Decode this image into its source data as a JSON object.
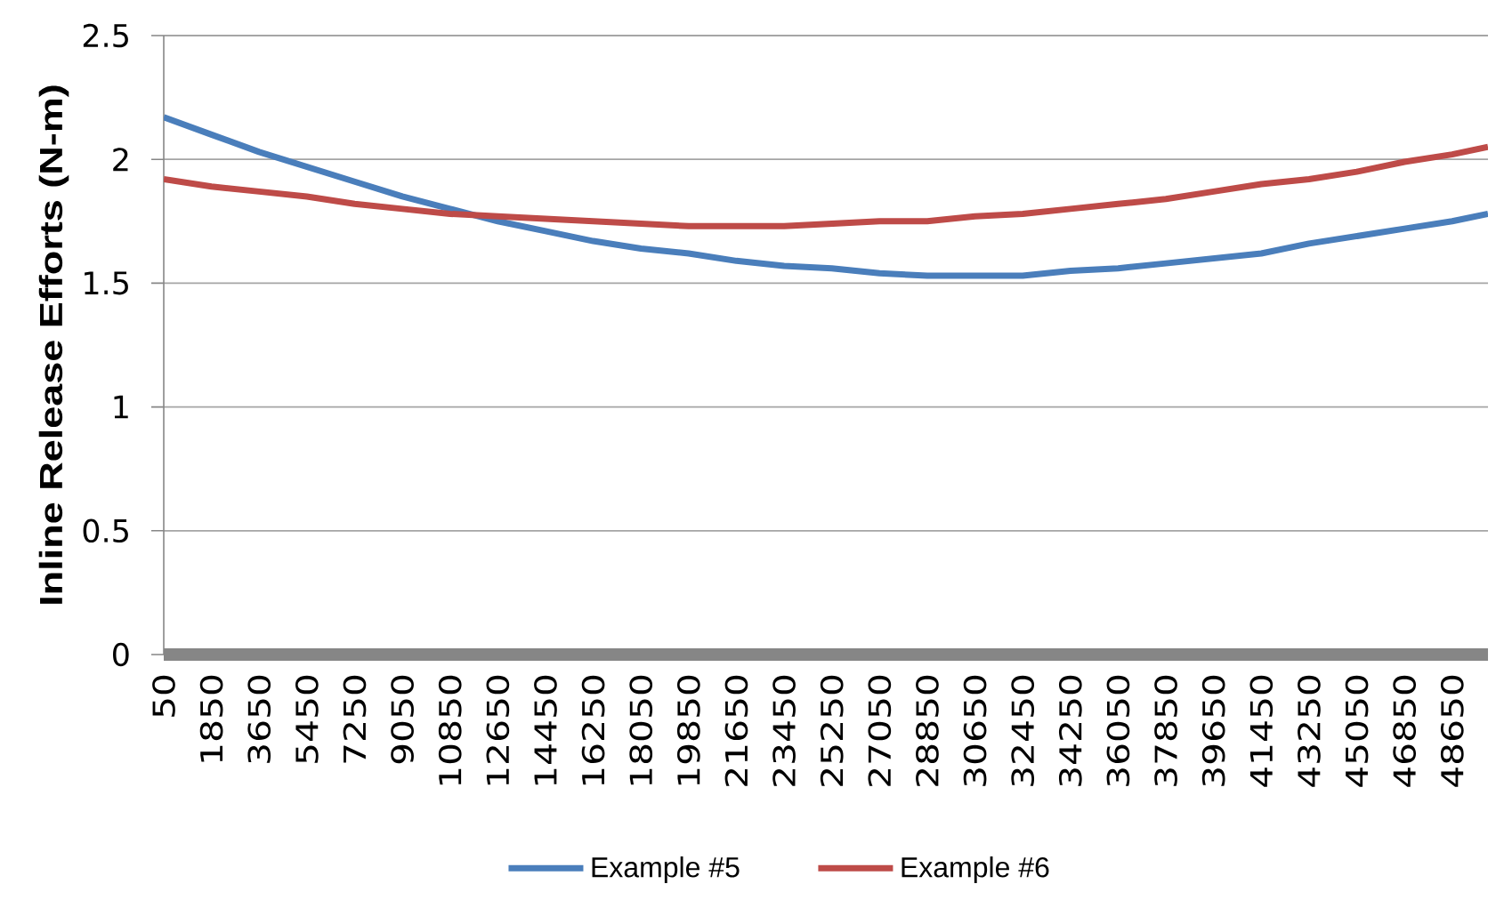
{
  "chart_data": {
    "type": "line",
    "ylabel": "Inline Release Efforts (N-m)",
    "x": [
      50,
      1850,
      3650,
      5450,
      7250,
      9050,
      10850,
      12650,
      14450,
      16250,
      18050,
      19850,
      21650,
      23450,
      25250,
      27050,
      28850,
      30650,
      32450,
      34250,
      36050,
      37850,
      39650,
      41450,
      43250,
      45050,
      46850,
      48650,
      50000
    ],
    "series": [
      {
        "name": "Example #5",
        "color": "#4a7ebb",
        "values": [
          2.17,
          2.1,
          2.03,
          1.97,
          1.91,
          1.85,
          1.8,
          1.75,
          1.71,
          1.67,
          1.64,
          1.62,
          1.59,
          1.57,
          1.56,
          1.54,
          1.53,
          1.53,
          1.53,
          1.55,
          1.56,
          1.58,
          1.6,
          1.62,
          1.66,
          1.69,
          1.72,
          1.75,
          1.78
        ]
      },
      {
        "name": "Example #6",
        "color": "#be4b48",
        "values": [
          1.92,
          1.89,
          1.87,
          1.85,
          1.82,
          1.8,
          1.78,
          1.77,
          1.76,
          1.75,
          1.74,
          1.73,
          1.73,
          1.73,
          1.74,
          1.75,
          1.75,
          1.77,
          1.78,
          1.8,
          1.82,
          1.84,
          1.87,
          1.9,
          1.92,
          1.95,
          1.99,
          2.02,
          2.05
        ]
      }
    ],
    "xlim": [
      50,
      50000
    ],
    "xticks": [
      50,
      1850,
      3650,
      5450,
      7250,
      9050,
      10850,
      12650,
      14450,
      16250,
      18050,
      19850,
      21650,
      23450,
      25250,
      27050,
      28850,
      30650,
      32450,
      34250,
      36050,
      37850,
      39650,
      41450,
      43250,
      45050,
      46850,
      48650
    ],
    "ylim": [
      0,
      2.5
    ],
    "yticks": [
      0,
      0.5,
      1,
      1.5,
      2,
      2.5
    ],
    "grid": "y",
    "legend": "bottom",
    "line_style": "solid"
  }
}
